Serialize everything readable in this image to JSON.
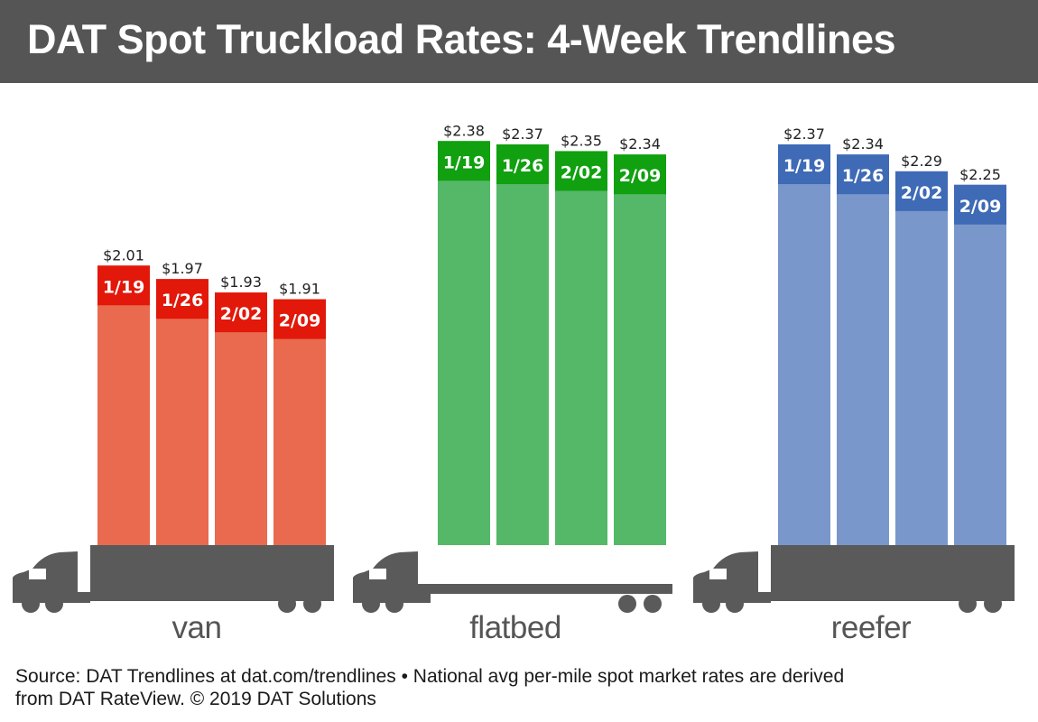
{
  "title": "DAT Spot Truckload Rates: 4-Week Trendlines",
  "footer": {
    "line1": "Source: DAT Trendlines at dat.com/trendlines • National avg per-mile spot market rates are derived",
    "line2": "from DAT RateView. © 2019 DAT Solutions"
  },
  "chart_data": {
    "type": "bar",
    "title": "DAT Spot Truckload Rates: 4-Week Trendlines",
    "categories": [
      "1/19",
      "1/26",
      "2/02",
      "2/09"
    ],
    "groups": [
      {
        "name": "van",
        "values": [
          2.01,
          1.97,
          1.93,
          1.91
        ],
        "labels": [
          "$2.01",
          "$1.97",
          "$1.93",
          "$1.91"
        ],
        "color": "#E96A4E",
        "label_color": "#E2180A",
        "truck": "van"
      },
      {
        "name": "flatbed",
        "values": [
          2.38,
          2.37,
          2.35,
          2.34
        ],
        "labels": [
          "$2.38",
          "$2.37",
          "$2.35",
          "$2.34"
        ],
        "color": "#54B868",
        "label_color": "#10A010",
        "truck": "flatbed"
      },
      {
        "name": "reefer",
        "values": [
          2.37,
          2.34,
          2.29,
          2.25
        ],
        "labels": [
          "$2.37",
          "$2.34",
          "$2.29",
          "$2.25"
        ],
        "color": "#7A97CC",
        "label_color": "#3E6AB6",
        "truck": "reefer"
      }
    ],
    "units": "$ per mile",
    "grid": false,
    "truck_color": "#5A5A5A"
  }
}
